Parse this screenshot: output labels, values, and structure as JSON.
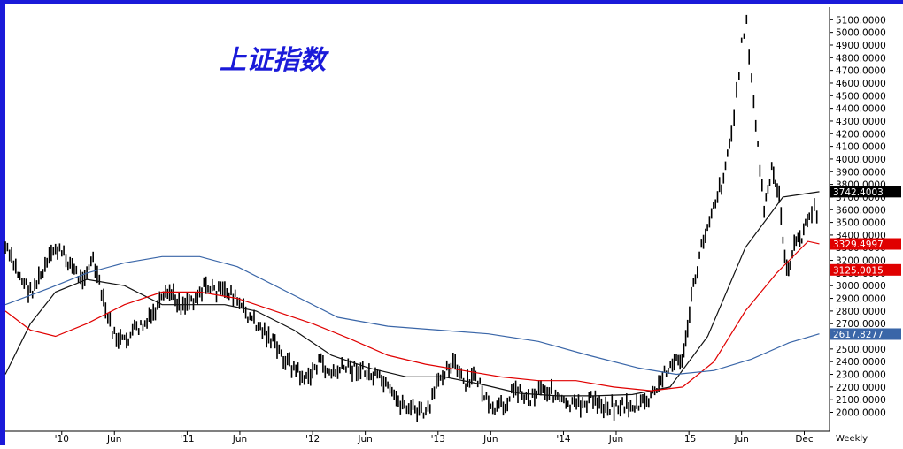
{
  "chart_data": {
    "type": "line",
    "title": "上证指数",
    "period": "Weekly",
    "ylim": [
      1850,
      5200
    ],
    "y_ticks": [
      2000,
      2100,
      2200,
      2300,
      2400,
      2500,
      2600,
      2700,
      2800,
      2900,
      3000,
      3100,
      3200,
      3300,
      3400,
      3500,
      3600,
      3700,
      3800,
      3900,
      4000,
      4100,
      4200,
      4300,
      4400,
      4500,
      4600,
      4700,
      4800,
      4900,
      5000,
      5100
    ],
    "y_tick_labels": [
      "2000.0000",
      "2100.0000",
      "2200.0000",
      "2300.0000",
      "2400.0000",
      "2500.0000",
      "2600.0000",
      "2700.0000",
      "2800.0000",
      "2900.0000",
      "3000.0000",
      "3100.0000",
      "3200.0000",
      "3300.0000",
      "3400.0000",
      "3500.0000",
      "3600.0000",
      "3700.0000",
      "3800.0000",
      "3900.0000",
      "4000.0000",
      "4100.0000",
      "4200.0000",
      "4300.0000",
      "4400.0000",
      "4500.0000",
      "4600.0000",
      "4700.0000",
      "4800.0000",
      "4900.0000",
      "5000.0000",
      "5100.0000"
    ],
    "x_tick_labels": [
      {
        "label": "'10",
        "x": 2010.0
      },
      {
        "label": "Jun",
        "x": 2010.42
      },
      {
        "label": "'11",
        "x": 2011.0
      },
      {
        "label": "Jun",
        "x": 2011.42
      },
      {
        "label": "'12",
        "x": 2012.0
      },
      {
        "label": "Jun",
        "x": 2012.42
      },
      {
        "label": "'13",
        "x": 2013.0
      },
      {
        "label": "Jun",
        "x": 2013.42
      },
      {
        "label": "'14",
        "x": 2014.0
      },
      {
        "label": "Jun",
        "x": 2014.42
      },
      {
        "label": "'15",
        "x": 2015.0
      },
      {
        "label": "Jun",
        "x": 2015.42
      },
      {
        "label": "Dec",
        "x": 2015.92
      }
    ],
    "xlim": [
      2009.55,
      2016.1
    ],
    "price_labels": [
      {
        "value": 3742.4003,
        "text": "3742.4003",
        "color": "#000000"
      },
      {
        "value": 3329.4997,
        "text": "3329.4997",
        "color": "#e00000"
      },
      {
        "value": 3125.0015,
        "text": "3125.0015",
        "color": "#e00000"
      },
      {
        "value": 2617.8277,
        "text": "2617.8277",
        "color": "#3a66a8"
      }
    ],
    "series": [
      {
        "style": "bars",
        "color": "#000000",
        "x": [
          2009.55,
          2009.65,
          2009.75,
          2009.85,
          2009.95,
          2010.05,
          2010.15,
          2010.25,
          2010.35,
          2010.42,
          2010.5,
          2010.58,
          2010.68,
          2010.78,
          2010.86,
          2010.95,
          2011.05,
          2011.15,
          2011.25,
          2011.35,
          2011.45,
          2011.55,
          2011.65,
          2011.75,
          2011.85,
          2011.95,
          2012.05,
          2012.15,
          2012.25,
          2012.35,
          2012.45,
          2012.55,
          2012.65,
          2012.75,
          2012.85,
          2012.92,
          2013.02,
          2013.12,
          2013.22,
          2013.3,
          2013.42,
          2013.52,
          2013.62,
          2013.72,
          2013.82,
          2013.92,
          2014.02,
          2014.12,
          2014.22,
          2014.32,
          2014.42,
          2014.52,
          2014.6,
          2014.68,
          2014.76,
          2014.82,
          2014.9,
          2014.96,
          2015.02,
          2015.1,
          2015.18,
          2015.26,
          2015.34,
          2015.38,
          2015.42,
          2015.46,
          2015.5,
          2015.55,
          2015.6,
          2015.66,
          2015.72,
          2015.78,
          2015.84,
          2015.9,
          2015.96,
          2016.0,
          2016.04
        ],
        "values": [
          3300,
          3100,
          2950,
          3100,
          3300,
          3200,
          3050,
          3200,
          2800,
          2600,
          2550,
          2650,
          2700,
          2850,
          2950,
          2850,
          2900,
          3000,
          2950,
          2950,
          2800,
          2700,
          2600,
          2450,
          2350,
          2250,
          2400,
          2300,
          2350,
          2350,
          2300,
          2250,
          2100,
          2050,
          2000,
          2000,
          2300,
          2400,
          2200,
          2300,
          2000,
          2050,
          2200,
          2100,
          2200,
          2150,
          2050,
          2050,
          2100,
          2050,
          2050,
          2050,
          2050,
          2100,
          2200,
          2350,
          2400,
          2450,
          2900,
          3300,
          3600,
          3800,
          4200,
          4500,
          4900,
          5100,
          4600,
          4100,
          3600,
          3900,
          3700,
          3100,
          3300,
          3400,
          3550,
          3600,
          3550
        ]
      },
      {
        "style": "line",
        "color": "#111111",
        "x": [
          2009.55,
          2009.75,
          2009.95,
          2010.2,
          2010.5,
          2010.8,
          2011.05,
          2011.3,
          2011.55,
          2011.85,
          2012.15,
          2012.45,
          2012.75,
          2013.05,
          2013.35,
          2013.65,
          2013.95,
          2014.25,
          2014.55,
          2014.85,
          2015.15,
          2015.45,
          2015.75,
          2016.04
        ],
        "values": [
          2300,
          2700,
          2950,
          3050,
          3000,
          2850,
          2850,
          2850,
          2800,
          2650,
          2450,
          2350,
          2280,
          2280,
          2220,
          2150,
          2130,
          2130,
          2140,
          2200,
          2600,
          3300,
          3700,
          3742
        ]
      },
      {
        "style": "line",
        "color": "#e00000",
        "x": [
          2009.55,
          2009.75,
          2009.95,
          2010.2,
          2010.5,
          2010.8,
          2011.1,
          2011.4,
          2011.7,
          2012.0,
          2012.3,
          2012.6,
          2012.9,
          2013.2,
          2013.5,
          2013.8,
          2014.1,
          2014.4,
          2014.7,
          2014.95,
          2015.2,
          2015.45,
          2015.7,
          2015.95,
          2016.04
        ],
        "values": [
          2800,
          2650,
          2600,
          2700,
          2850,
          2950,
          2950,
          2900,
          2800,
          2700,
          2580,
          2450,
          2380,
          2330,
          2280,
          2250,
          2250,
          2200,
          2170,
          2200,
          2400,
          2800,
          3100,
          3350,
          3330
        ]
      },
      {
        "style": "line",
        "color": "#3a66a8",
        "x": [
          2009.55,
          2009.9,
          2010.2,
          2010.5,
          2010.8,
          2011.1,
          2011.4,
          2011.8,
          2012.2,
          2012.6,
          2013.0,
          2013.4,
          2013.8,
          2014.2,
          2014.6,
          2014.9,
          2015.2,
          2015.5,
          2015.8,
          2016.04
        ],
        "values": [
          2850,
          2980,
          3100,
          3180,
          3230,
          3230,
          3150,
          2950,
          2750,
          2680,
          2650,
          2620,
          2560,
          2450,
          2350,
          2300,
          2330,
          2420,
          2550,
          2620
        ]
      }
    ]
  },
  "colors": {
    "frame_left": "#1a1ad9",
    "axis_line": "#000000",
    "grid_sep": "#dddddd"
  }
}
